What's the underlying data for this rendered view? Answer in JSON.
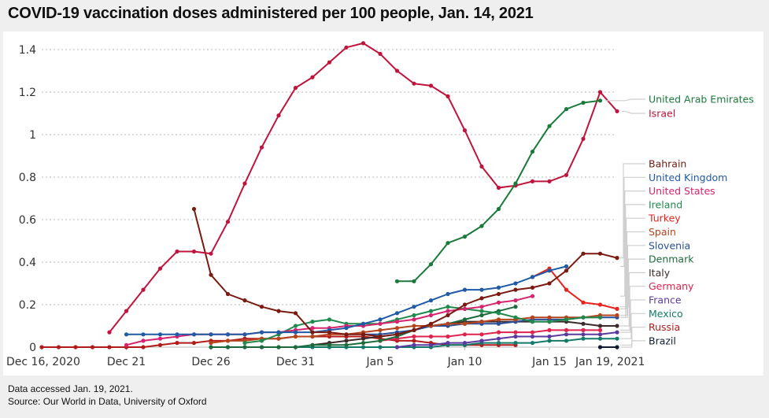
{
  "header": {
    "title": "COVID-19 vaccination doses administered per 100 people, Jan. 14, 2021"
  },
  "footer": {
    "accessed": "Data accessed Jan. 19, 2021.",
    "source": "Source: Our World in Data, University of Oxford"
  },
  "chart_data": {
    "type": "line",
    "title": "COVID-19 vaccination doses administered per 100 people, Jan. 14, 2021",
    "xlabel": "",
    "ylabel": "",
    "x_start": "Dec 16, 2020",
    "x_end": "Jan 19, 2021",
    "x_days": 35,
    "ylim": [
      0,
      1.4
    ],
    "yticks": [
      0,
      0.2,
      0.4,
      0.6,
      0.8,
      1,
      1.2,
      1.4
    ],
    "ytick_labels": [
      "0",
      "0.2",
      "0.4",
      "0.6",
      "0.8",
      "1",
      "1.2",
      "1.4"
    ],
    "xticks": [
      {
        "day": 0,
        "label": "Dec 16, 2020"
      },
      {
        "day": 5,
        "label": "Dec 21"
      },
      {
        "day": 10,
        "label": "Dec 26"
      },
      {
        "day": 15,
        "label": "Dec 31"
      },
      {
        "day": 20,
        "label": "Jan 5"
      },
      {
        "day": 25,
        "label": "Jan 10"
      },
      {
        "day": 30,
        "label": "Jan 15"
      },
      {
        "day": 34,
        "label": "Jan 19, 2021"
      }
    ],
    "grid": "horizontal-dotted",
    "legend_position": "right",
    "series": [
      {
        "name": "United Arab Emirates",
        "color": "#1a7a3a",
        "start_day": 21,
        "values": [
          0.31,
          0.31,
          0.39,
          0.49,
          0.52,
          0.57,
          0.65,
          0.77,
          0.92,
          1.04,
          1.12,
          1.15,
          1.16
        ]
      },
      {
        "name": "Israel",
        "color": "#c0143c",
        "start_day": 4,
        "values": [
          0.07,
          0.17,
          0.27,
          0.37,
          0.45,
          0.45,
          0.44,
          0.59,
          0.77,
          0.94,
          1.09,
          1.22,
          1.27,
          1.34,
          1.41,
          1.43,
          1.38,
          1.3,
          1.24,
          1.23,
          1.18,
          1.02,
          0.85,
          0.75,
          0.76,
          0.78,
          0.78,
          0.81,
          0.98,
          1.2,
          1.11
        ]
      },
      {
        "name": "Bahrain",
        "color": "#7a1a10",
        "start_day": 9,
        "values": [
          0.65,
          0.34,
          0.25,
          0.22,
          0.19,
          0.17,
          0.16,
          0.07,
          0.07,
          0.06,
          0.06,
          0.05,
          0.06,
          0.08,
          0.11,
          0.15,
          0.2,
          0.23,
          0.25,
          0.27,
          0.28,
          0.3,
          0.36,
          0.44,
          0.44,
          0.42
        ]
      },
      {
        "name": "United Kingdom",
        "color": "#1f5aa6",
        "start_day": 5,
        "values": [
          0.06,
          0.06,
          0.06,
          0.06,
          0.06,
          0.06,
          0.06,
          0.06,
          0.07,
          0.07,
          0.07,
          0.07,
          0.08,
          0.09,
          0.11,
          0.13,
          0.16,
          0.19,
          0.22,
          0.25,
          0.27,
          0.27,
          0.28,
          0.3,
          0.33,
          0.36,
          0.38
        ]
      },
      {
        "name": "United States",
        "color": "#d6246e",
        "start_day": 5,
        "values": [
          0.01,
          0.03,
          0.04,
          0.05,
          0.06,
          0.06,
          0.06,
          0.06,
          0.07,
          0.07,
          0.08,
          0.09,
          0.09,
          0.1,
          0.1,
          0.11,
          0.12,
          0.13,
          0.15,
          0.17,
          0.18,
          0.19,
          0.21,
          0.22,
          0.24
        ]
      },
      {
        "name": "Ireland",
        "color": "#1f8a4c",
        "start_day": 12,
        "values": [
          0.02,
          0.03,
          0.06,
          0.1,
          0.12,
          0.13,
          0.11,
          0.11,
          0.11,
          0.13,
          0.15,
          0.17,
          0.19,
          0.18,
          0.17,
          0.16,
          0.14,
          0.12,
          0.12,
          0.13,
          0.14,
          0.14
        ]
      },
      {
        "name": "Turkey",
        "color": "#e8221c",
        "start_day": 29,
        "values": [
          0.33,
          0.37,
          0.27,
          0.21,
          0.2,
          0.18
        ]
      },
      {
        "name": "Spain",
        "color": "#b5441d",
        "start_day": 10,
        "values": [
          0.02,
          0.03,
          0.03,
          0.04,
          0.04,
          0.05,
          0.05,
          0.06,
          0.06,
          0.07,
          0.08,
          0.09,
          0.1,
          0.1,
          0.11,
          0.11,
          0.12,
          0.13,
          0.13,
          0.14,
          0.14,
          0.14,
          0.14,
          0.15,
          0.15
        ]
      },
      {
        "name": "Slovenia",
        "color": "#2a4f9a",
        "start_day": 19,
        "values": [
          0.06,
          0.06,
          0.07,
          0.08,
          0.1,
          0.1,
          0.11,
          0.11,
          0.11,
          0.12,
          0.13,
          0.13,
          0.13,
          0.14,
          0.14,
          0.14
        ]
      },
      {
        "name": "Denmark",
        "color": "#1d6b3d",
        "start_day": 10,
        "values": [
          0.0,
          0.0,
          0.0,
          0.0,
          0.0,
          0.0,
          0.01,
          0.01,
          0.01,
          0.02,
          0.03,
          0.05,
          0.08,
          0.1,
          0.11,
          0.13,
          0.15,
          0.17,
          0.19
        ]
      },
      {
        "name": "Italy",
        "color": "#3d2a2a",
        "start_day": 16,
        "values": [
          0.01,
          0.02,
          0.03,
          0.04,
          0.05,
          0.06,
          0.08,
          0.1,
          0.11,
          0.12,
          0.12,
          0.12,
          0.12,
          0.12,
          0.12,
          0.12,
          0.11,
          0.1,
          0.1
        ]
      },
      {
        "name": "Germany",
        "color": "#e0234e",
        "start_day": 20,
        "values": [
          0.03,
          0.04,
          0.05,
          0.05,
          0.05,
          0.06,
          0.06,
          0.07,
          0.07,
          0.07,
          0.08,
          0.08,
          0.08,
          0.08
        ]
      },
      {
        "name": "France",
        "color": "#5a3aa0",
        "start_day": 21,
        "values": [
          0.0,
          0.01,
          0.01,
          0.02,
          0.02,
          0.03,
          0.04,
          0.05,
          0.05,
          0.05,
          0.06,
          0.06,
          0.06,
          0.07
        ]
      },
      {
        "name": "Mexico",
        "color": "#137a6a",
        "start_day": 10,
        "values": [
          0.0,
          0.0,
          0.0,
          0.0,
          0.0,
          0.0,
          0.0,
          0.0,
          0.0,
          0.0,
          0.0,
          0.0,
          0.0,
          0.0,
          0.01,
          0.01,
          0.02,
          0.02,
          0.02,
          0.02,
          0.03,
          0.03,
          0.04,
          0.04,
          0.04
        ]
      },
      {
        "name": "Russia",
        "color": "#b31b1b",
        "start_day": 0,
        "values": [
          0.0,
          0.0,
          0.0,
          0.0,
          0.0,
          0.0,
          0.0,
          0.01,
          0.02,
          0.02,
          0.03,
          0.03,
          0.04,
          0.04,
          0.04,
          0.05,
          0.05,
          0.05,
          0.05,
          0.05,
          0.04,
          0.03,
          0.03,
          0.02,
          0.01,
          0.01,
          0.01,
          0.01,
          0.01
        ]
      },
      {
        "name": "Brazil",
        "color": "#111a33",
        "start_day": 33,
        "values": [
          0.0,
          0.0
        ]
      }
    ]
  }
}
